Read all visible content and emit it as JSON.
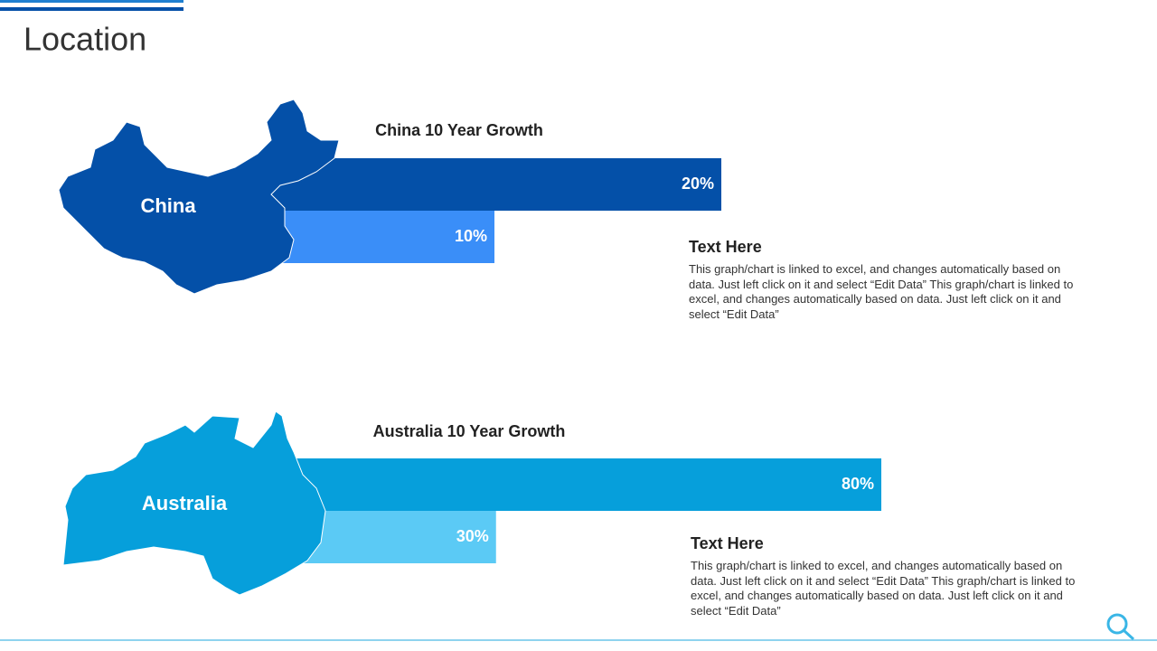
{
  "title": "Location",
  "chart_data": [
    {
      "type": "bar",
      "title": "China 10 Year Growth",
      "map_label": "China",
      "values": [
        20,
        10
      ],
      "value_labels": [
        "20%",
        "10%"
      ],
      "colors": [
        "#0450a8",
        "#3a8ef8"
      ],
      "map_color": "#0450a8"
    },
    {
      "type": "bar",
      "title": "Australia 10 Year Growth",
      "map_label": "Australia",
      "values": [
        80,
        30
      ],
      "value_labels": [
        "80%",
        "30%"
      ],
      "colors": [
        "#069fdb",
        "#5bcaf5"
      ],
      "map_color": "#069fdb"
    }
  ],
  "notes": [
    {
      "heading": "Text Here",
      "body": "This graph/chart is linked to excel, and changes automatically based on data. Just left click on it and select “Edit Data” This graph/chart is linked to excel, and changes automatically based on data. Just left click on it and select “Edit Data”"
    },
    {
      "heading": "Text Here",
      "body": "This graph/chart is linked to excel, and changes automatically based on data. Just left click on it and select “Edit Data” This graph/chart is linked to excel, and changes automatically based on data. Just left click on it and select “Edit Data”"
    }
  ]
}
